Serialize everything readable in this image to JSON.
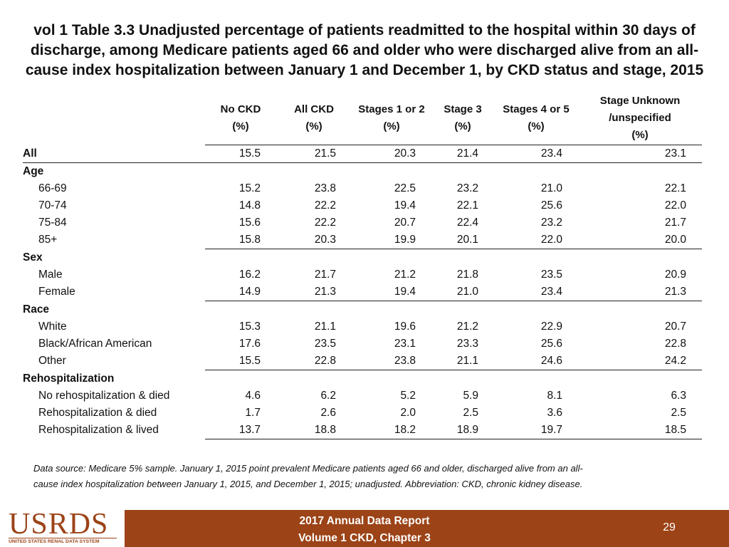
{
  "title": {
    "line1": "vol 1 Table 3.3 Unadjusted percentage of patients readmitted to the hospital within 30 days of",
    "line2": "discharge, among Medicare patients aged 66 and older who were discharged alive from an all-",
    "line3": "cause index hospitalization between January 1 and December 1, by CKD status and stage,  2015"
  },
  "table": {
    "columns": [
      {
        "line1": "No CKD",
        "line2": "(%)",
        "line3": ""
      },
      {
        "line1": "All CKD",
        "line2": "(%)",
        "line3": ""
      },
      {
        "line1": "Stages 1 or 2",
        "line2": "(%)",
        "line3": ""
      },
      {
        "line1": "Stage 3",
        "line2": "(%)",
        "line3": ""
      },
      {
        "line1": "Stages 4 or 5",
        "line2": "(%)",
        "line3": ""
      },
      {
        "line1": "Stage Unknown",
        "line2": "/unspecified",
        "line3": "(%)"
      }
    ],
    "all_row": {
      "label": "All",
      "values": [
        "15.5",
        "21.5",
        "20.3",
        "21.4",
        "23.4",
        "23.1"
      ]
    },
    "groups": [
      {
        "label": "Age",
        "rows": [
          {
            "label": "66-69",
            "values": [
              "15.2",
              "23.8",
              "22.5",
              "23.2",
              "21.0",
              "22.1"
            ]
          },
          {
            "label": "70-74",
            "values": [
              "14.8",
              "22.2",
              "19.4",
              "22.1",
              "25.6",
              "22.0"
            ]
          },
          {
            "label": "75-84",
            "values": [
              "15.6",
              "22.2",
              "20.7",
              "22.4",
              "23.2",
              "21.7"
            ]
          },
          {
            "label": "85+",
            "values": [
              "15.8",
              "20.3",
              "19.9",
              "20.1",
              "22.0",
              "20.0"
            ]
          }
        ]
      },
      {
        "label": "Sex",
        "rows": [
          {
            "label": "Male",
            "values": [
              "16.2",
              "21.7",
              "21.2",
              "21.8",
              "23.5",
              "20.9"
            ]
          },
          {
            "label": "Female",
            "values": [
              "14.9",
              "21.3",
              "19.4",
              "21.0",
              "23.4",
              "21.3"
            ]
          }
        ]
      },
      {
        "label": "Race",
        "rows": [
          {
            "label": "White",
            "values": [
              "15.3",
              "21.1",
              "19.6",
              "21.2",
              "22.9",
              "20.7"
            ]
          },
          {
            "label": "Black/African American",
            "values": [
              "17.6",
              "23.5",
              "23.1",
              "23.3",
              "25.6",
              "22.8"
            ]
          },
          {
            "label": "Other",
            "values": [
              "15.5",
              "22.8",
              "23.8",
              "21.1",
              "24.6",
              "24.2"
            ]
          }
        ]
      },
      {
        "label": "Rehospitalization",
        "rows": [
          {
            "label": "No rehospitalization & died",
            "values": [
              "4.6",
              "6.2",
              "5.2",
              "5.9",
              "8.1",
              "6.3"
            ]
          },
          {
            "label": "Rehospitalization & died",
            "values": [
              "1.7",
              "2.6",
              "2.0",
              "2.5",
              "3.6",
              "2.5"
            ]
          },
          {
            "label": "Rehospitalization & lived",
            "values": [
              "13.7",
              "18.8",
              "18.2",
              "18.9",
              "19.7",
              "18.5"
            ]
          }
        ]
      }
    ]
  },
  "note": {
    "line1": "Data source: Medicare 5% sample. January 1, 2015 point prevalent Medicare patients aged 66 and older, discharged alive from an all-",
    "line2": "cause index hospitalization between January 1, 2015, and December 1, 2015; unadjusted.  Abbreviation: CKD, chronic kidney disease."
  },
  "footer": {
    "logo_main": "USRDS",
    "logo_sub": "UNITED STATES RENAL DATA SYSTEM",
    "report_line1": "2017 Annual Data Report",
    "report_line2": "Volume 1 CKD, Chapter 3",
    "page_number": "29",
    "background_color": "#9c4317"
  }
}
